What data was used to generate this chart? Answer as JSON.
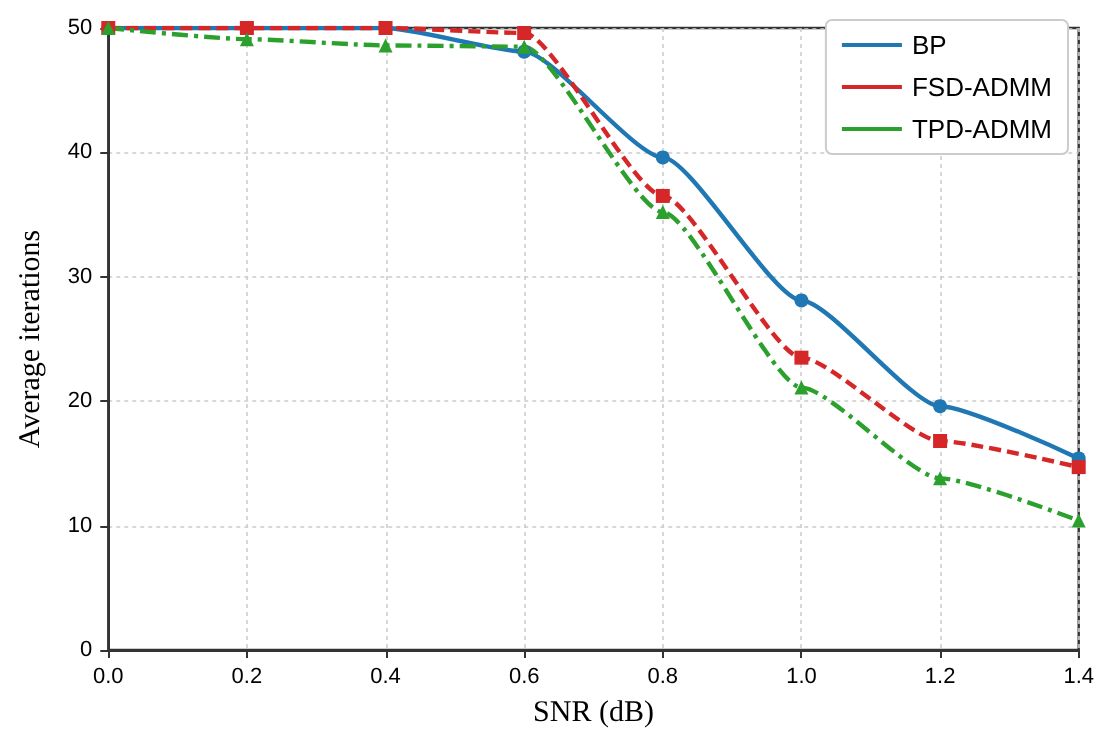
{
  "chart_data": {
    "type": "line",
    "xlabel": "SNR (dB)",
    "ylabel": "Average iterations",
    "x": [
      0,
      0.2,
      0.4,
      0.6,
      0.8,
      1.0,
      1.2,
      1.4
    ],
    "series": [
      {
        "name": "BP",
        "color": "#1f77b4",
        "marker": "circle",
        "line_style": "solid",
        "values": [
          50,
          50,
          50,
          48.1,
          39.6,
          28.1,
          19.6,
          15.4
        ]
      },
      {
        "name": "FSD-ADMM",
        "color": "#d62728",
        "marker": "square",
        "line_style": "dashed",
        "values": [
          50,
          50,
          50,
          49.6,
          36.5,
          23.5,
          16.8,
          14.7
        ]
      },
      {
        "name": "TPD-ADMM",
        "color": "#2ca02c",
        "marker": "triangle",
        "line_style": "dashdot",
        "values": [
          50,
          49.1,
          48.6,
          48.5,
          35.2,
          21.1,
          13.8,
          10.4
        ]
      }
    ],
    "xlim": [
      0,
      1.4
    ],
    "xticks": [
      {
        "value": 0,
        "label": "0.0"
      },
      0.2,
      0.4,
      0.6,
      0.8,
      {
        "value": 1,
        "label": "1.0"
      },
      1.2,
      1.4
    ],
    "ylim": [
      0,
      50
    ],
    "yticks": [
      0,
      10,
      20,
      30,
      40,
      50
    ],
    "grid": true,
    "legend": "top right"
  }
}
